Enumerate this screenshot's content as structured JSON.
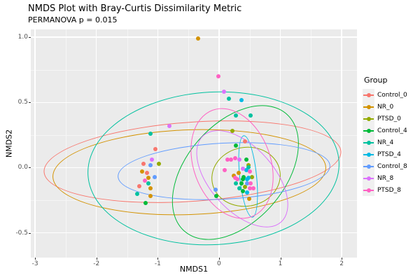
{
  "title": "NMDS Plot with Bray-Curtis Dissimilarity Metric",
  "subtitle": "PERMANOVA p = 0.015",
  "legend": {
    "title": "Group",
    "entries": [
      {
        "label": "Control_0",
        "color": "#F8766D"
      },
      {
        "label": "NR_0",
        "color": "#D39200"
      },
      {
        "label": "PTSD_0",
        "color": "#93AA00"
      },
      {
        "label": "Control_4",
        "color": "#00BA38"
      },
      {
        "label": "NR_4",
        "color": "#00C19F"
      },
      {
        "label": "PTSD_4",
        "color": "#00B9E3"
      },
      {
        "label": "Control_8",
        "color": "#619CFF"
      },
      {
        "label": "NR_8",
        "color": "#DB72FB"
      },
      {
        "label": "PTSD_8",
        "color": "#FF61C3"
      }
    ]
  },
  "chart_data": {
    "type": "scatter",
    "title": "NMDS Plot with Bray-Curtis Dissimilarity Metric",
    "subtitle": "PERMANOVA p = 0.015",
    "axes": {
      "xlabel": "NMDS1",
      "ylabel": "NMDS2",
      "xlim": [
        -3.07,
        2.25
      ],
      "ylim": [
        -0.69,
        1.06
      ],
      "x_ticks": [
        -3,
        -2,
        -1,
        0,
        1,
        2
      ],
      "y_ticks": [
        1.0,
        0.5,
        0.0,
        -0.5
      ],
      "x_tick_labels": [
        "-3",
        "-2",
        "-1",
        "0",
        "1",
        "2"
      ],
      "y_tick_labels": [
        "1.0",
        "0.5",
        "0.0",
        "-0.5"
      ],
      "grid": true,
      "panel_background": "#EBEBEB"
    },
    "legend_position": "right",
    "groups": [
      {
        "name": "Control_0",
        "color": "#F8766D",
        "points": [
          [
            -1.04,
            0.14
          ],
          [
            -1.23,
            0.03
          ],
          [
            -1.18,
            -0.04
          ],
          [
            -1.3,
            -0.14
          ],
          [
            0.42,
            0.2
          ]
        ],
        "ellipse": {
          "cx": -0.43,
          "cy": 0.04,
          "rx": 2.44,
          "ry": 0.31,
          "rot": -4
        }
      },
      {
        "name": "NR_0",
        "color": "#D39200",
        "points": [
          [
            -0.34,
            0.99
          ],
          [
            -1.26,
            -0.03
          ],
          [
            -1.15,
            -0.08
          ],
          [
            -1.12,
            -0.16
          ],
          [
            -1.12,
            -0.22
          ],
          [
            0.32,
            -0.04
          ],
          [
            0.24,
            -0.06
          ],
          [
            0.49,
            -0.24
          ]
        ],
        "ellipse": {
          "cx": -0.48,
          "cy": -0.04,
          "rx": 2.24,
          "ry": 0.33,
          "rot": -2
        }
      },
      {
        "name": "PTSD_0",
        "color": "#93AA00",
        "points": [
          [
            0.22,
            0.28
          ],
          [
            -0.98,
            0.03
          ],
          [
            0.48,
            0.02
          ],
          [
            0.54,
            -0.07
          ],
          [
            0.42,
            -0.15
          ]
        ],
        "ellipse": {
          "cx": 0.45,
          "cy": -0.07,
          "rx": 0.57,
          "ry": 0.23,
          "rot": -10
        }
      },
      {
        "name": "Control_4",
        "color": "#00BA38",
        "points": [
          [
            0.27,
            0.17
          ],
          [
            -1.2,
            -0.27
          ],
          [
            0.45,
            0.06
          ],
          [
            0.4,
            -0.07
          ],
          [
            0.39,
            -0.09
          ],
          [
            0.37,
            -0.12
          ],
          [
            0.39,
            -0.18
          ],
          [
            -0.05,
            -0.22
          ]
        ],
        "ellipse": {
          "cx": 0.27,
          "cy": -0.04,
          "rx": 0.81,
          "ry": 0.6,
          "rot": 41
        }
      },
      {
        "name": "NR_4",
        "color": "#00C19F",
        "points": [
          [
            0.16,
            0.53
          ],
          [
            0.27,
            0.4
          ],
          [
            0.51,
            0.4
          ],
          [
            -1.12,
            0.26
          ],
          [
            -1.15,
            -0.12
          ],
          [
            -1.34,
            -0.2
          ],
          [
            0.48,
            0.0
          ],
          [
            0.27,
            -0.12
          ],
          [
            0.33,
            -0.16
          ]
        ],
        "ellipse": {
          "cx": -0.08,
          "cy": -0.01,
          "rx": 2.06,
          "ry": 0.59,
          "rot": -3
        }
      },
      {
        "name": "PTSD_4",
        "color": "#00B9E3",
        "points": [
          [
            0.37,
            0.52
          ],
          [
            0.45,
            -0.02
          ],
          [
            0.48,
            -0.08
          ],
          [
            0.46,
            -0.09
          ],
          [
            0.46,
            -0.19
          ]
        ],
        "ellipse": {
          "cx": 0.48,
          "cy": -0.07,
          "rx": 0.15,
          "ry": 0.32,
          "rot": -6
        }
      },
      {
        "name": "Control_8",
        "color": "#619CFF",
        "points": [
          [
            -1.12,
            0.02
          ],
          [
            -1.05,
            -0.07
          ],
          [
            0.46,
            -0.12
          ],
          [
            -0.06,
            -0.17
          ]
        ],
        "ellipse": {
          "cx": 0.09,
          "cy": -0.03,
          "rx": 1.74,
          "ry": 0.22,
          "rot": -3
        }
      },
      {
        "name": "NR_8",
        "color": "#DB72FB",
        "points": [
          [
            0.08,
            0.58
          ],
          [
            -0.81,
            0.32
          ],
          [
            -1.09,
            0.06
          ],
          [
            0.33,
            0.06
          ],
          [
            0.39,
            -0.01
          ]
        ],
        "ellipse": {
          "cx": 0.38,
          "cy": -0.09,
          "rx": 0.53,
          "ry": 0.45,
          "rot": -42
        }
      },
      {
        "name": "PTSD_8",
        "color": "#FF61C3",
        "points": [
          [
            -0.01,
            0.7
          ],
          [
            -1.21,
            -0.1
          ],
          [
            0.14,
            0.06
          ],
          [
            0.19,
            0.06
          ],
          [
            0.26,
            0.07
          ],
          [
            0.09,
            -0.02
          ],
          [
            0.26,
            -0.08
          ],
          [
            0.5,
            -0.03
          ],
          [
            0.3,
            -0.09
          ],
          [
            0.51,
            -0.12
          ],
          [
            0.5,
            -0.16
          ],
          [
            0.56,
            -0.16
          ]
        ],
        "ellipse": {
          "cx": 0.22,
          "cy": 0.03,
          "rx": 0.64,
          "ry": 0.44,
          "rot": -20
        }
      }
    ]
  }
}
